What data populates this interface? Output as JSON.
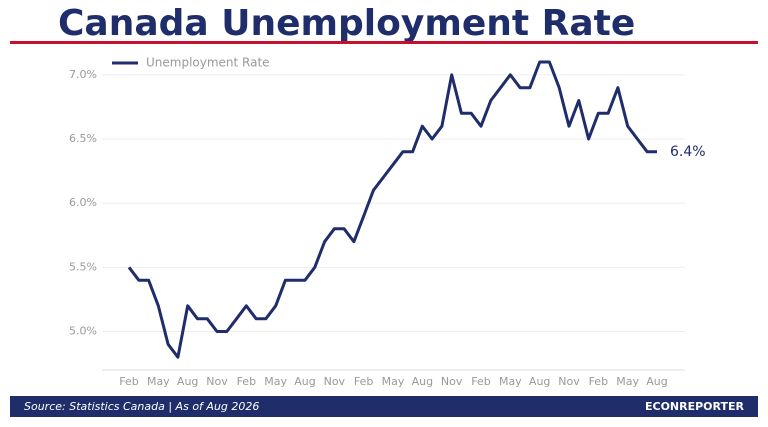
{
  "chart_data": {
    "type": "line",
    "title": "Canada Unemployment Rate",
    "source": "Source: Statistics Canada  |  As of Aug 2026",
    "brand": "ECONREPORTER",
    "end_label": "6.4%",
    "categories": [
      "Feb",
      null,
      null,
      "May",
      null,
      null,
      "Aug",
      null,
      null,
      "Nov",
      null,
      null,
      "Feb",
      null,
      null,
      "May",
      null,
      null,
      "Aug",
      null,
      null,
      "Nov",
      null,
      null,
      "Feb",
      null,
      null,
      "May",
      null,
      null,
      "Aug",
      null,
      null,
      "Nov",
      null,
      null,
      "Feb",
      null,
      null,
      "May",
      null,
      null,
      "Aug",
      null,
      null,
      "Nov",
      null,
      null,
      "Feb",
      null,
      null,
      "May",
      null,
      null,
      "Aug"
    ],
    "series": [
      {
        "name": "Unemployment Rate",
        "color": "#1f2d6b",
        "values": [
          5.5,
          5.4,
          5.4,
          5.2,
          4.9,
          4.8,
          5.2,
          5.1,
          5.1,
          5.0,
          5.0,
          5.1,
          5.2,
          5.1,
          5.1,
          5.2,
          5.4,
          5.4,
          5.4,
          5.5,
          5.7,
          5.8,
          5.8,
          5.7,
          5.9,
          6.1,
          6.2,
          6.3,
          6.4,
          6.4,
          6.6,
          6.5,
          6.6,
          7.0,
          6.7,
          6.7,
          6.6,
          6.8,
          6.9,
          7.0,
          6.9,
          6.9,
          7.1,
          7.1,
          6.9,
          6.6,
          6.8,
          6.5,
          6.7,
          6.7,
          6.9,
          6.6,
          6.5,
          6.4,
          6.4
        ]
      }
    ],
    "ylim": [
      4.7,
      7.1
    ],
    "yticks": [
      {
        "value": 5.0,
        "label": "5.0%"
      },
      {
        "value": 5.5,
        "label": "5.5%"
      },
      {
        "value": 6.0,
        "label": "6.0%"
      },
      {
        "value": 6.5,
        "label": "6.5%"
      },
      {
        "value": 7.0,
        "label": "7.0%"
      }
    ],
    "grid": true,
    "legend": "upper left"
  }
}
